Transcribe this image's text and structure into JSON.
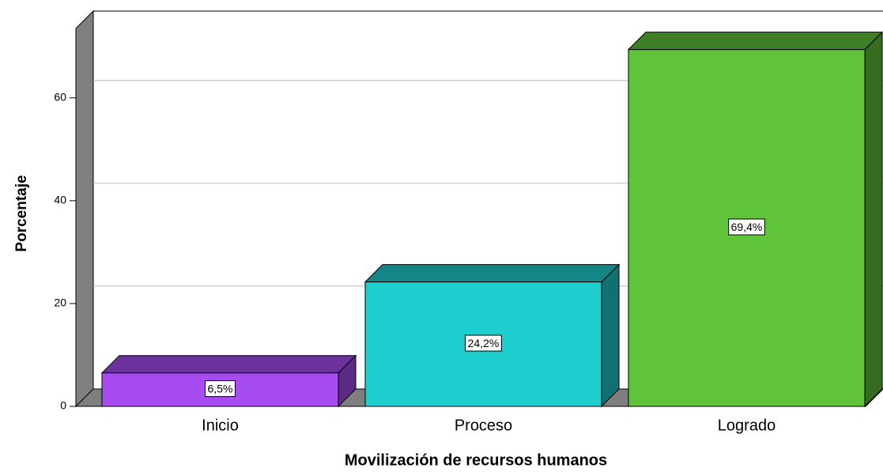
{
  "chart_data": {
    "type": "bar3d",
    "x_label": "Movilización de recursos humanos",
    "y_label": "Porcentaje",
    "categories": [
      "Inicio",
      "Proceso",
      "Logrado"
    ],
    "values": [
      6.5,
      24.2,
      69.4
    ],
    "value_labels": [
      "6,5%",
      "24,2%",
      "69,4%"
    ],
    "colors": [
      "#a64cf0",
      "#1ecece",
      "#60c43a"
    ],
    "ylim": [
      0,
      73.5
    ],
    "yticks": [
      0,
      20,
      40,
      60
    ],
    "grid": true
  }
}
